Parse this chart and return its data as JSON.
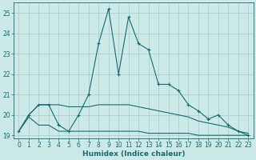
{
  "xlabel": "Humidex (Indice chaleur)",
  "xlim": [
    -0.5,
    23.5
  ],
  "ylim": [
    18.85,
    25.5
  ],
  "yticks": [
    19,
    20,
    21,
    22,
    23,
    24,
    25
  ],
  "xticks": [
    0,
    1,
    2,
    3,
    4,
    5,
    6,
    7,
    8,
    9,
    10,
    11,
    12,
    13,
    14,
    15,
    16,
    17,
    18,
    19,
    20,
    21,
    22,
    23
  ],
  "bg_color": "#cce9e9",
  "grid_color": "#aacccc",
  "line_color": "#1a6b6b",
  "series": [
    {
      "x": [
        0,
        1,
        2,
        3,
        4,
        5,
        6,
        7,
        8,
        9,
        10,
        11,
        12,
        13,
        14,
        15,
        16,
        17,
        18,
        19,
        20,
        21,
        22,
        23
      ],
      "y": [
        19.2,
        20.0,
        20.5,
        20.5,
        19.5,
        19.2,
        20.0,
        21.0,
        23.5,
        25.2,
        22.0,
        24.8,
        23.5,
        23.2,
        21.5,
        21.5,
        21.2,
        20.5,
        20.2,
        19.8,
        20.0,
        19.5,
        19.2,
        19.0
      ],
      "has_marker": true
    },
    {
      "x": [
        0,
        1,
        2,
        3,
        4,
        5,
        6,
        7,
        8,
        9,
        10,
        11,
        12,
        13,
        14,
        15,
        16,
        17,
        18,
        19,
        20,
        21,
        22,
        23
      ],
      "y": [
        19.2,
        20.0,
        20.5,
        20.5,
        20.5,
        20.4,
        20.4,
        20.4,
        20.5,
        20.5,
        20.5,
        20.5,
        20.4,
        20.3,
        20.2,
        20.1,
        20.0,
        19.9,
        19.7,
        19.6,
        19.5,
        19.4,
        19.2,
        19.1
      ],
      "has_marker": false
    },
    {
      "x": [
        0,
        1,
        2,
        3,
        4,
        5,
        6,
        7,
        8,
        9,
        10,
        11,
        12,
        13,
        14,
        15,
        16,
        17,
        18,
        19,
        20,
        21,
        22,
        23
      ],
      "y": [
        19.2,
        19.9,
        19.5,
        19.5,
        19.2,
        19.2,
        19.2,
        19.2,
        19.2,
        19.2,
        19.2,
        19.2,
        19.2,
        19.1,
        19.1,
        19.1,
        19.1,
        19.1,
        19.0,
        19.0,
        19.0,
        19.0,
        19.0,
        19.0
      ],
      "has_marker": false
    }
  ]
}
